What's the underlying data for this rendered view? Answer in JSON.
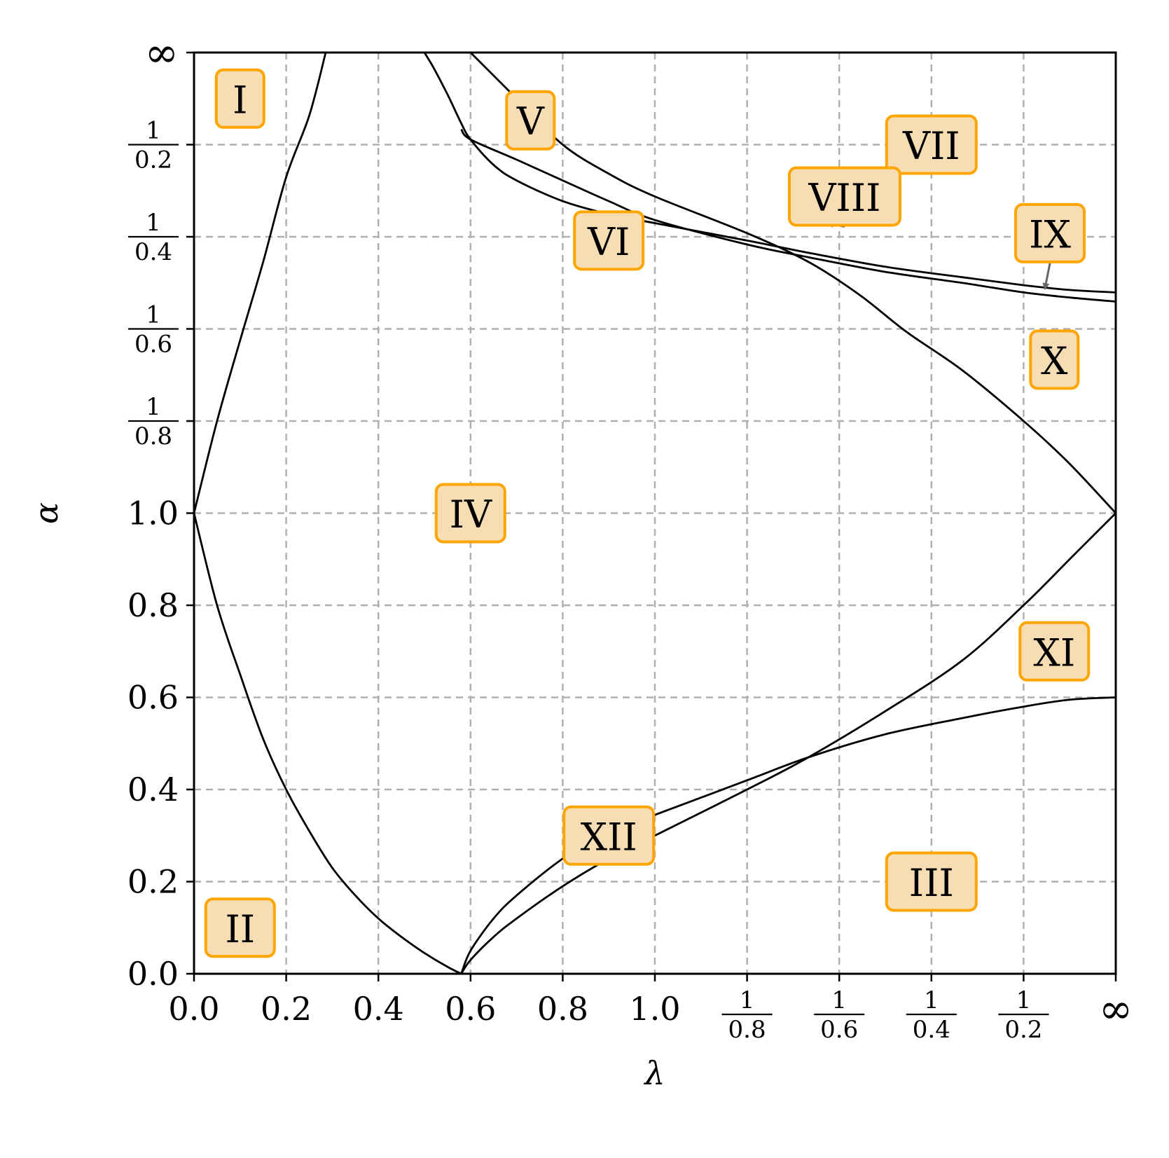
{
  "chart_data": {
    "type": "line",
    "title": "",
    "xlabel": "λ",
    "ylabel": "α",
    "scale_note": "both axes: linear on [0,1], reciprocal on [1,∞]",
    "grid": true,
    "x_ticks": [
      {
        "value": 0.0,
        "label": "0.0"
      },
      {
        "value": 0.2,
        "label": "0.2"
      },
      {
        "value": 0.4,
        "label": "0.4"
      },
      {
        "value": 0.6,
        "label": "0.6"
      },
      {
        "value": 0.8,
        "label": "0.8"
      },
      {
        "value": 1.0,
        "label": "1.0"
      },
      {
        "value": 1.25,
        "num": "1",
        "den": "0.8"
      },
      {
        "value": 1.6667,
        "num": "1",
        "den": "0.6"
      },
      {
        "value": 2.5,
        "num": "1",
        "den": "0.4"
      },
      {
        "value": 5.0,
        "num": "1",
        "den": "0.2"
      },
      {
        "value": "inf",
        "label": "∞"
      }
    ],
    "y_ticks": [
      {
        "value": 0.0,
        "label": "0.0"
      },
      {
        "value": 0.2,
        "label": "0.2"
      },
      {
        "value": 0.4,
        "label": "0.4"
      },
      {
        "value": 0.6,
        "label": "0.6"
      },
      {
        "value": 0.8,
        "label": "0.8"
      },
      {
        "value": 1.0,
        "label": "1.0"
      },
      {
        "value": 1.25,
        "num": "1",
        "den": "0.8"
      },
      {
        "value": 1.6667,
        "num": "1",
        "den": "0.6"
      },
      {
        "value": 2.5,
        "num": "1",
        "den": "0.4"
      },
      {
        "value": 5.0,
        "num": "1",
        "den": "0.2"
      },
      {
        "value": "inf",
        "label": "∞"
      }
    ],
    "series": [
      {
        "x": [
          0.0,
          0.05,
          0.1,
          0.15,
          0.2,
          0.25,
          0.2857
        ],
        "y": [
          1.0,
          1.25,
          1.6,
          2.2,
          3.7,
          7.3,
          "inf"
        ]
      },
      {
        "x": [
          0.0,
          0.05,
          0.1,
          0.15,
          0.2,
          0.25,
          0.3,
          0.35,
          0.4,
          0.45,
          0.5,
          0.55,
          0.58
        ],
        "y": [
          1.0,
          0.8,
          0.65,
          0.51,
          0.4,
          0.31,
          0.23,
          0.17,
          0.12,
          0.08,
          0.045,
          0.015,
          0.0
        ]
      },
      {
        "x": [
          0.5,
          0.52,
          0.55,
          0.58,
          0.6,
          0.65,
          0.7,
          0.8,
          0.9,
          1.0,
          1.25,
          1.5,
          2.0,
          3.0,
          5.0,
          10.0,
          "inf"
        ],
        "y": [
          "inf",
          30.0,
          11.0,
          6.5,
          5.3,
          4.1,
          3.6,
          3.1,
          2.85,
          2.7,
          2.45,
          2.3,
          2.15,
          2.05,
          1.98,
          1.94,
          1.92
        ]
      },
      {
        "x": [
          0.58,
          0.6,
          0.7,
          0.8,
          0.9,
          1.0,
          1.25,
          1.5,
          2.0,
          3.0,
          5.0,
          10.0,
          "inf"
        ],
        "y": [
          6.0,
          5.3,
          4.3,
          3.6,
          3.1,
          2.75,
          2.4,
          2.25,
          2.1,
          2.0,
          1.92,
          1.88,
          1.85
        ]
      },
      {
        "x": [
          0.6,
          0.7,
          0.8,
          0.9,
          1.0,
          1.25,
          1.5,
          1.8,
          2.2,
          3.0,
          5.0,
          10.0,
          "inf"
        ],
        "y": [
          "inf",
          10.0,
          5.0,
          3.8,
          3.2,
          2.55,
          2.2,
          1.9,
          1.65,
          1.45,
          1.25,
          1.12,
          1.0
        ]
      },
      {
        "x": [
          0.58,
          0.6,
          0.65,
          0.7,
          0.8,
          0.9,
          1.0,
          1.25,
          1.5,
          2.0,
          3.0,
          5.0,
          10.0,
          "inf"
        ],
        "y": [
          0.0,
          0.05,
          0.12,
          0.17,
          0.25,
          0.31,
          0.345,
          0.42,
          0.47,
          0.52,
          0.555,
          0.58,
          0.595,
          0.6
        ]
      },
      {
        "x": [
          0.58,
          0.6,
          0.65,
          0.7,
          0.8,
          0.9,
          1.0,
          1.25,
          1.5,
          2.0,
          3.0,
          5.0,
          10.0,
          "inf"
        ],
        "y": [
          0.0,
          0.03,
          0.08,
          0.12,
          0.19,
          0.25,
          0.3,
          0.4,
          0.47,
          0.57,
          0.68,
          0.8,
          0.9,
          1.0
        ]
      }
    ],
    "annotations": [
      {
        "text": "I",
        "x": 0.1,
        "y": 10.0
      },
      {
        "text": "II",
        "x": 0.1,
        "y": 0.1
      },
      {
        "text": "III",
        "x": 2.5,
        "y": 0.2
      },
      {
        "text": "IV",
        "x": 0.6,
        "y": 1.0
      },
      {
        "text": "V",
        "x": 0.73,
        "y": 6.8
      },
      {
        "text": "VI",
        "x": 0.9,
        "y": 2.45
      },
      {
        "text": "VII",
        "x": 2.5,
        "y": 5.0
      },
      {
        "text": "VIII",
        "x": 1.7,
        "y": 3.2
      },
      {
        "text": "IX",
        "x": 7.0,
        "y": 2.55
      },
      {
        "text": "X",
        "x": 7.5,
        "y": 1.5
      },
      {
        "text": "XI",
        "x": 7.5,
        "y": 0.7
      },
      {
        "text": "XII",
        "x": 0.9,
        "y": 0.3
      }
    ],
    "arrows": [
      {
        "label": "VIII",
        "to_x": 1.6,
        "to_y": 2.7
      },
      {
        "label": "IX",
        "to_x": 6.5,
        "to_y": 1.95
      }
    ]
  }
}
